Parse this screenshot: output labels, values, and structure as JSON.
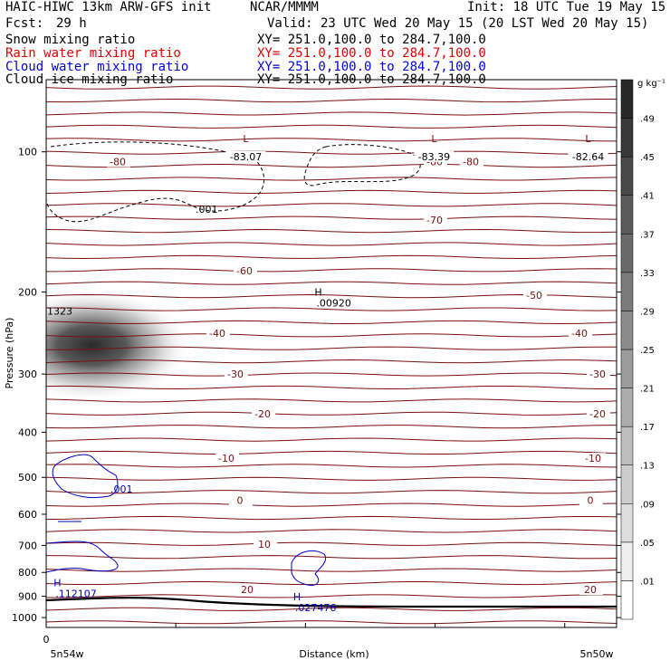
{
  "header": {
    "model": "HAIC-HIWC 13km ARW-GFS init",
    "org": "NCAR/MMMM",
    "init": "Init: 18 UTC Tue 19 May 15",
    "fcst_label": "Fcst:",
    "fcst_value": "29 h",
    "valid": "Valid: 23 UTC Wed 20 May 15 (20 LST Wed 20 May 15)"
  },
  "fields": [
    {
      "name": "Snow mixing ratio",
      "xy": "XY= 251.0,100.0 to 284.7,100.0",
      "color": "#000000"
    },
    {
      "name": "Rain water mixing ratio",
      "xy": "XY= 251.0,100.0 to 284.7,100.0",
      "color": "#e00000"
    },
    {
      "name": "Cloud water mixing ratio",
      "xy": "XY= 251.0,100.0 to 284.7,100.0",
      "color": "#0000e0"
    },
    {
      "name": "Cloud ice mixing ratio",
      "xy": "XY= 251.0,100.0 to 284.7,100.0",
      "color": "#000000"
    }
  ],
  "chart_data": {
    "type": "heatmap",
    "subtype": "vertical cross-section with contour overlays",
    "ylabel": "Pressure (hPa)",
    "xlabel": "Distance (km)",
    "x_start_label": "0",
    "x_left_label": "5n54w",
    "x_right_label": "5n50w",
    "y_scale": "log",
    "ylim": [
      1050,
      70
    ],
    "xlim": [
      0,
      100
    ],
    "y_ticks": [
      100,
      200,
      300,
      400,
      500,
      600,
      700,
      800,
      900,
      1000
    ],
    "colorbar": {
      "unit": "g kg⁻¹",
      "levels": [
        ".01",
        ".05",
        ".09",
        ".13",
        ".17",
        ".21",
        ".25",
        ".29",
        ".33",
        ".37",
        ".41",
        ".45",
        ".49"
      ]
    },
    "shaded_field": {
      "name": "Snow mixing ratio",
      "peak_label": "1323",
      "peak_x": 8,
      "peak_p": 270
    },
    "temperature_contours": {
      "color": "#7b1010",
      "levels": [
        {
          "p": 105,
          "label": "-80"
        },
        {
          "p": 140,
          "label": "-70"
        },
        {
          "p": 180,
          "label": "-60"
        },
        {
          "p": 203,
          "label": "-50"
        },
        {
          "p": 245,
          "label": "-40"
        },
        {
          "p": 300,
          "label": "-30"
        },
        {
          "p": 365,
          "label": "-20"
        },
        {
          "p": 455,
          "label": "-10"
        },
        {
          "p": 560,
          "label": "0"
        },
        {
          "p": 695,
          "label": "10"
        },
        {
          "p": 870,
          "label": "20"
        }
      ],
      "lows": [
        {
          "x": 35,
          "p": 97,
          "label": "-83.07"
        },
        {
          "x": 68,
          "p": 97,
          "label": "-83.39"
        },
        {
          "x": 95,
          "p": 97,
          "label": "-82.64"
        }
      ]
    },
    "cloud_ice_contours": {
      "labels": [
        ".001"
      ],
      "high": {
        "x": 48,
        "p": 213,
        "label": ".00920"
      }
    },
    "cloud_water_contours": {
      "color": "#0000c0",
      "labels": [
        ".001"
      ],
      "highs": [
        {
          "x": 1,
          "p": 895,
          "label": ".112107"
        },
        {
          "x": 43,
          "p": 960,
          "label": ".027476"
        }
      ]
    }
  }
}
